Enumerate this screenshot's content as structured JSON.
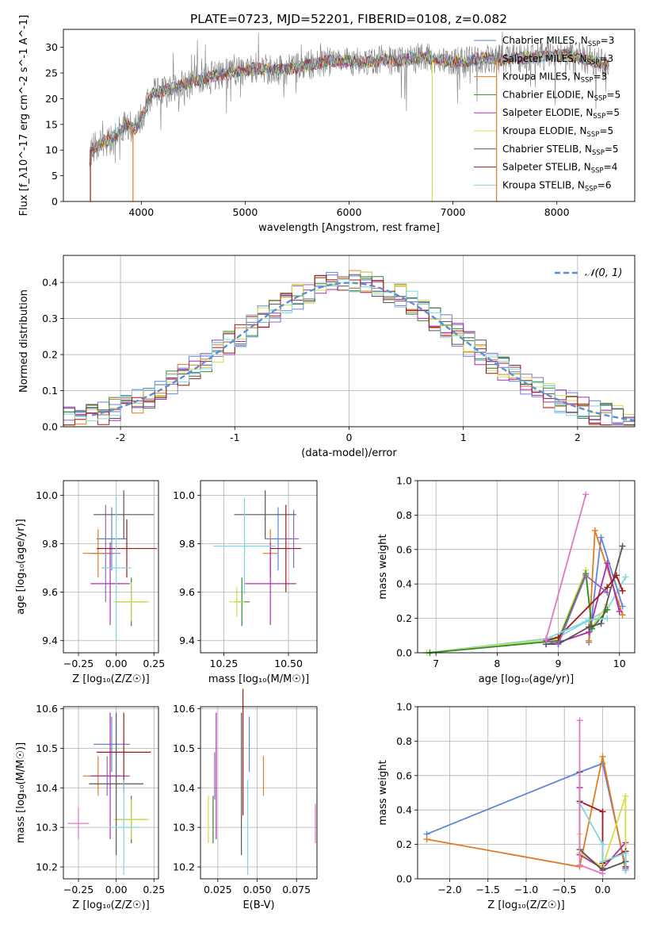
{
  "figure": {
    "title": "PLATE=0723, MJD=52201, FIBERID=0108, z=0.082"
  },
  "colors": {
    "Chabrier MILES": "#5f87d6",
    "Salpeter MILES": "#9467bd",
    "Kroupa MILES": "#e07b1e",
    "Chabrier ELODIE": "#2e8b2e",
    "Salpeter ELODIE": "#b02ab0",
    "Kroupa ELODIE": "#d4dd4a",
    "Chabrier STELIB": "#555555",
    "Salpeter STELIB": "#a01818",
    "Kroupa STELIB": "#7fd6e0",
    "normal": "#5b8fd6",
    "spectrum_gray": "#7f7f7f"
  },
  "chart_data": [
    {
      "type": "line",
      "xlabel": "wavelength [Angstrom, rest frame]",
      "ylabel": "Flux [f_λ10^-17 erg cm^-2 s^-1 A^-1]",
      "xlim": [
        3250,
        8750
      ],
      "ylim": [
        0,
        33.5
      ],
      "xticks": [
        4000,
        5000,
        6000,
        7000,
        8000
      ],
      "yticks": [
        0,
        5,
        10,
        15,
        20,
        25,
        30
      ],
      "grid": false,
      "legend_position": "right",
      "legend": [
        {
          "name": "Chabrier MILES",
          "label": "Chabrier MILES, N",
          "sub": "SSP",
          "n": "=3"
        },
        {
          "name": "Salpeter MILES",
          "label": "Salpeter MILES, N",
          "sub": "SSP",
          "n": "=3"
        },
        {
          "name": "Kroupa MILES",
          "label": "Kroupa MILES, N",
          "sub": "SSP",
          "n": "=3"
        },
        {
          "name": "Chabrier ELODIE",
          "label": "Chabrier ELODIE, N",
          "sub": "SSP",
          "n": "=5"
        },
        {
          "name": "Salpeter ELODIE",
          "label": "Salpeter ELODIE, N",
          "sub": "SSP",
          "n": "=5"
        },
        {
          "name": "Kroupa ELODIE",
          "label": "Kroupa ELODIE, N",
          "sub": "SSP",
          "n": "=5"
        },
        {
          "name": "Chabrier STELIB",
          "label": "Chabrier STELIB, N",
          "sub": "SSP",
          "n": "=5"
        },
        {
          "name": "Salpeter STELIB",
          "label": "Salpeter STELIB, N",
          "sub": "SSP",
          "n": "=4"
        },
        {
          "name": "Kroupa STELIB",
          "label": "Kroupa STELIB, N",
          "sub": "SSP",
          "n": "=6"
        }
      ],
      "spectrum_envelope": {
        "x": [
          3500,
          3700,
          3850,
          3950,
          4100,
          4300,
          4500,
          4700,
          4900,
          5100,
          5300,
          5500,
          5700,
          5900,
          6100,
          6300,
          6500,
          6700,
          6900,
          7100,
          7300,
          7500,
          7700,
          7900,
          8100,
          8300,
          8500
        ],
        "y": [
          10,
          12,
          15,
          14,
          21,
          22,
          23.5,
          24.5,
          25,
          26,
          25.5,
          26,
          27,
          27.5,
          27,
          27.5,
          27.5,
          28,
          27.5,
          27,
          28,
          27.5,
          28,
          28.5,
          28.5,
          27.5,
          26.5
        ]
      }
    },
    {
      "type": "line",
      "xlabel": "(data-model)/error",
      "ylabel": "Normed distribution",
      "xlim": [
        -2.5,
        2.5
      ],
      "ylim": [
        0,
        0.475
      ],
      "xticks": [
        -2,
        -1,
        0,
        1,
        2
      ],
      "yticks": [
        0.0,
        0.1,
        0.2,
        0.3,
        0.4
      ],
      "grid": true,
      "legend_position": "top-right",
      "normal_label": "𝒩(0, 1)",
      "normal_mean": 0,
      "normal_sigma": 1,
      "bin_width": 0.1
    },
    {
      "type": "scatter",
      "xlabel": "Z [log₁₀(Z/Z☉)]",
      "ylabel": "age  [log₁₀(age/yr)]",
      "xlim": [
        -0.35,
        0.28
      ],
      "ylim": [
        9.35,
        10.06
      ],
      "xticks": [
        -0.25,
        0.0,
        0.25
      ],
      "xticklabels": [
        "−0.25",
        "0.00",
        "0.25"
      ],
      "yticks": [
        9.4,
        9.6,
        9.8,
        10.0
      ],
      "grid": true,
      "points": [
        {
          "name": "Chabrier MILES",
          "x": -0.03,
          "xerr": 0.1,
          "y": 9.82,
          "yerr": 0.13
        },
        {
          "name": "Salpeter MILES",
          "x": -0.07,
          "xerr": 0.1,
          "y": 9.76,
          "yerr": 0.2
        },
        {
          "name": "Kroupa MILES",
          "x": -0.12,
          "xerr": 0.1,
          "y": 9.76,
          "yerr": 0.1
        },
        {
          "name": "Chabrier ELODIE",
          "x": 0.1,
          "xerr": 0.1,
          "y": 9.56,
          "yerr": 0.1
        },
        {
          "name": "Salpeter ELODIE",
          "x": -0.04,
          "xerr": 0.13,
          "y": 9.635,
          "yerr": 0.17
        },
        {
          "name": "Kroupa ELODIE",
          "x": 0.1,
          "xerr": 0.12,
          "y": 9.56,
          "yerr": 0.08
        },
        {
          "name": "Chabrier STELIB",
          "x": 0.05,
          "xerr": 0.2,
          "y": 9.92,
          "yerr": 0.1
        },
        {
          "name": "Salpeter STELIB",
          "x": 0.07,
          "xerr": 0.2,
          "y": 9.78,
          "yerr": 0.12
        },
        {
          "name": "Kroupa STELIB",
          "x": 0.0,
          "xerr": 0.1,
          "y": 9.7,
          "yerr": 0.3
        }
      ]
    },
    {
      "type": "scatter",
      "xlabel": "mass [log₁₀(M/M☉)]",
      "ylabel": "",
      "xlim": [
        10.16,
        10.61
      ],
      "ylim": [
        9.35,
        10.06
      ],
      "xticks": [
        10.25,
        10.5
      ],
      "xticklabels": [
        "10.25",
        "10.50"
      ],
      "yticks": [
        9.4,
        9.6,
        9.8,
        10.0
      ],
      "grid": true,
      "points": [
        {
          "name": "Chabrier MILES",
          "x": 10.46,
          "xerr": 0.05,
          "y": 9.82,
          "yerr": 0.13
        },
        {
          "name": "Salpeter MILES",
          "x": 10.52,
          "xerr": 0.02,
          "y": 9.82,
          "yerr": 0.12
        },
        {
          "name": "Kroupa MILES",
          "x": 10.43,
          "xerr": 0.03,
          "y": 9.76,
          "yerr": 0.1
        },
        {
          "name": "Chabrier ELODIE",
          "x": 10.32,
          "xerr": 0.03,
          "y": 9.56,
          "yerr": 0.1
        },
        {
          "name": "Salpeter ELODIE",
          "x": 10.43,
          "xerr": 0.1,
          "y": 9.635,
          "yerr": 0.17
        },
        {
          "name": "Kroupa ELODIE",
          "x": 10.3,
          "xerr": 0.03,
          "y": 9.56,
          "yerr": 0.06
        },
        {
          "name": "Chabrier STELIB",
          "x": 10.41,
          "xerr": 0.12,
          "y": 9.92,
          "yerr": 0.1
        },
        {
          "name": "Salpeter STELIB",
          "x": 10.49,
          "xerr": 0.06,
          "y": 9.78,
          "yerr": 0.18
        },
        {
          "name": "Kroupa STELIB",
          "x": 10.33,
          "xerr": 0.12,
          "y": 9.79,
          "yerr": 0.2
        }
      ]
    },
    {
      "type": "line",
      "xlabel": "age  [log₁₀(age/yr)]",
      "ylabel": "mass weight",
      "xlim": [
        6.7,
        10.25
      ],
      "ylim": [
        0,
        1
      ],
      "xticks": [
        7,
        8,
        9,
        10
      ],
      "yticks": [
        0.0,
        0.2,
        0.4,
        0.6,
        0.8,
        1.0
      ],
      "grid": true,
      "series": [
        {
          "name": "Kroupa STELIB",
          "x": [
            6.85,
            9.0,
            9.45,
            9.8,
            10.1
          ],
          "y": [
            0.0,
            0.09,
            0.18,
            0.25,
            0.44
          ]
        },
        {
          "name": "Chabrier MILES",
          "x": [
            9.5,
            9.7,
            10.05
          ],
          "y": [
            0.06,
            0.67,
            0.27
          ]
        },
        {
          "name": "Kroupa MILES",
          "x": [
            9.5,
            9.6,
            10.05
          ],
          "y": [
            0.07,
            0.71,
            0.22
          ]
        },
        {
          "name": "Salpeter ELODIE",
          "x": [
            8.8,
            9.0,
            9.5,
            9.8,
            10.0
          ],
          "y": [
            0.05,
            0.06,
            0.12,
            0.52,
            0.24
          ]
        },
        {
          "name": "Kroupa ELODIE",
          "x": [
            6.85,
            9.0,
            9.45,
            9.55,
            9.8
          ],
          "y": [
            0.0,
            0.08,
            0.48,
            0.15,
            0.28
          ]
        },
        {
          "name": "Chabrier ELODIE",
          "x": [
            6.9,
            9.0,
            9.45,
            9.55,
            9.8
          ],
          "y": [
            0.0,
            0.07,
            0.46,
            0.14,
            0.25
          ]
        },
        {
          "name": "Chabrier STELIB",
          "x": [
            8.8,
            9.0,
            9.5,
            9.7,
            10.05
          ],
          "y": [
            0.05,
            0.05,
            0.15,
            0.17,
            0.62
          ]
        },
        {
          "name": "Salpeter STELIB",
          "x": [
            8.8,
            9.0,
            9.8,
            9.95,
            10.05
          ],
          "y": [
            0.07,
            0.09,
            0.38,
            0.45,
            0.36
          ]
        },
        {
          "name": "Salpeter MILES",
          "x": [
            8.8,
            9.0,
            9.45,
            9.8
          ],
          "y": [
            0.07,
            0.05,
            0.45,
            0.35
          ]
        },
        {
          "name": "Kroupa STELIB",
          "x": [
            8.8,
            9.5,
            9.8
          ],
          "y": [
            0.08,
            0.19,
            0.2
          ]
        },
        {
          "name": "pink",
          "x": [
            8.8,
            9.45
          ],
          "y": [
            0.08,
            0.92
          ]
        }
      ]
    },
    {
      "type": "scatter",
      "xlabel": "Z [log₁₀(Z/Z☉)]",
      "ylabel": "mass [log₁₀(M/M☉)]",
      "xlim": [
        -0.35,
        0.28
      ],
      "ylim": [
        10.17,
        10.605
      ],
      "xticks": [
        -0.25,
        0.0,
        0.25
      ],
      "xticklabels": [
        "−0.25",
        "0.00",
        "0.25"
      ],
      "yticks": [
        10.2,
        10.3,
        10.4,
        10.5,
        10.6
      ],
      "grid": true,
      "points": [
        {
          "name": "Chabrier MILES",
          "x": -0.03,
          "xerr": 0.12,
          "y": 10.51,
          "yerr": 0.07
        },
        {
          "name": "Salpeter MILES",
          "x": -0.06,
          "xerr": 0.09,
          "y": 10.43,
          "yerr": 0.05
        },
        {
          "name": "Kroupa MILES",
          "x": -0.12,
          "xerr": 0.1,
          "y": 10.43,
          "yerr": 0.05
        },
        {
          "name": "Chabrier ELODIE",
          "x": 0.1,
          "xerr": 0.1,
          "y": 10.32,
          "yerr": 0.06
        },
        {
          "name": "Salpeter ELODIE",
          "x": -0.04,
          "xerr": 0.13,
          "y": 10.43,
          "yerr": 0.16
        },
        {
          "name": "Kroupa ELODIE",
          "x": 0.1,
          "xerr": 0.12,
          "y": 10.32,
          "yerr": 0.05
        },
        {
          "name": "Chabrier STELIB",
          "x": 0.0,
          "xerr": 0.18,
          "y": 10.41,
          "yerr": 0.18
        },
        {
          "name": "Salpeter STELIB",
          "x": 0.05,
          "xerr": 0.18,
          "y": 10.49,
          "yerr": 0.1
        },
        {
          "name": "Kroupa STELIB",
          "x": 0.05,
          "xerr": 0.1,
          "y": 10.3,
          "yerr": 0.12
        },
        {
          "name": "pink",
          "x": -0.25,
          "xerr": 0.07,
          "y": 10.31,
          "yerr": 0.04
        }
      ]
    },
    {
      "type": "scatter",
      "xlabel": "E(B-V)",
      "ylabel": "",
      "xlim": [
        0.014,
        0.088
      ],
      "ylim": [
        10.17,
        10.605
      ],
      "xticks": [
        0.025,
        0.05,
        0.075
      ],
      "xticklabels": [
        "0.025",
        "0.050",
        "0.075"
      ],
      "yticks": [
        10.2,
        10.3,
        10.4,
        10.5,
        10.6
      ],
      "grid": true,
      "points": [
        {
          "name": "Chabrier MILES",
          "x": 0.045,
          "y": 10.51,
          "yerr": 0.07
        },
        {
          "name": "Salpeter MILES",
          "x": 0.023,
          "y": 10.43,
          "yerr": 0.06
        },
        {
          "name": "Kroupa MILES",
          "x": 0.054,
          "y": 10.43,
          "yerr": 0.05
        },
        {
          "name": "Chabrier ELODIE",
          "x": 0.022,
          "y": 10.32,
          "yerr": 0.06
        },
        {
          "name": "Salpeter ELODIE",
          "x": 0.024,
          "y": 10.43,
          "yerr": 0.16
        },
        {
          "name": "Kroupa ELODIE",
          "x": 0.019,
          "y": 10.32,
          "yerr": 0.06
        },
        {
          "name": "Chabrier STELIB",
          "x": 0.04,
          "y": 10.41,
          "yerr": 0.18
        },
        {
          "name": "Salpeter STELIB",
          "x": 0.041,
          "y": 10.49,
          "yerr": 0.16
        },
        {
          "name": "Kroupa STELIB",
          "x": 0.044,
          "y": 10.3,
          "yerr": 0.12
        },
        {
          "name": "pink",
          "x": 0.087,
          "y": 10.31,
          "yerr": 0.05
        }
      ]
    },
    {
      "type": "line",
      "xlabel": "Z [log₁₀(Z/Z☉)]",
      "ylabel": "mass weight",
      "xlim": [
        -2.42,
        0.42
      ],
      "ylim": [
        0,
        1
      ],
      "xticks": [
        -2.0,
        -1.5,
        -1.0,
        -0.5,
        0.0
      ],
      "xticklabels": [
        "−2.0",
        "−1.5",
        "−1.0",
        "−0.5",
        "0.0"
      ],
      "yticks": [
        0.0,
        0.2,
        0.4,
        0.6,
        0.8,
        1.0
      ],
      "grid": true,
      "series": [
        {
          "name": "Chabrier MILES",
          "x": [
            -2.3,
            -0.3,
            0.0,
            0.3
          ],
          "y": [
            0.26,
            0.62,
            0.67,
            0.07
          ]
        },
        {
          "name": "Kroupa MILES",
          "x": [
            -2.3,
            -0.3,
            0.0,
            0.3
          ],
          "y": [
            0.23,
            0.07,
            0.71,
            0.05
          ]
        },
        {
          "name": "Salpeter ELODIE",
          "x": [
            -0.3,
            -0.3,
            0.0,
            0.3,
            0.3
          ],
          "y": [
            0.53,
            0.14,
            0.06,
            0.21,
            0.06
          ]
        },
        {
          "name": "Kroupa ELODIE",
          "x": [
            -0.3,
            -0.3,
            0.0,
            0.3,
            0.3
          ],
          "y": [
            0.26,
            0.15,
            0.07,
            0.48,
            0.05
          ]
        },
        {
          "name": "Chabrier STELIB",
          "x": [
            -0.3,
            -0.3,
            0.0,
            0.3,
            0.3
          ],
          "y": [
            0.62,
            0.17,
            0.05,
            0.1,
            0.05
          ]
        },
        {
          "name": "Salpeter STELIB",
          "x": [
            -0.3,
            0.0,
            0.0,
            0.3,
            0.3
          ],
          "y": [
            0.45,
            0.39,
            0.09,
            0.16,
            0.07
          ]
        },
        {
          "name": "Kroupa STELIB",
          "x": [
            -0.3,
            0.0,
            0.0,
            0.3,
            0.3
          ],
          "y": [
            0.44,
            0.2,
            0.1,
            0.15,
            0.05
          ]
        },
        {
          "name": "pink",
          "x": [
            -0.3,
            -0.3,
            0.0
          ],
          "y": [
            0.92,
            0.08,
            0.03
          ]
        }
      ]
    }
  ]
}
